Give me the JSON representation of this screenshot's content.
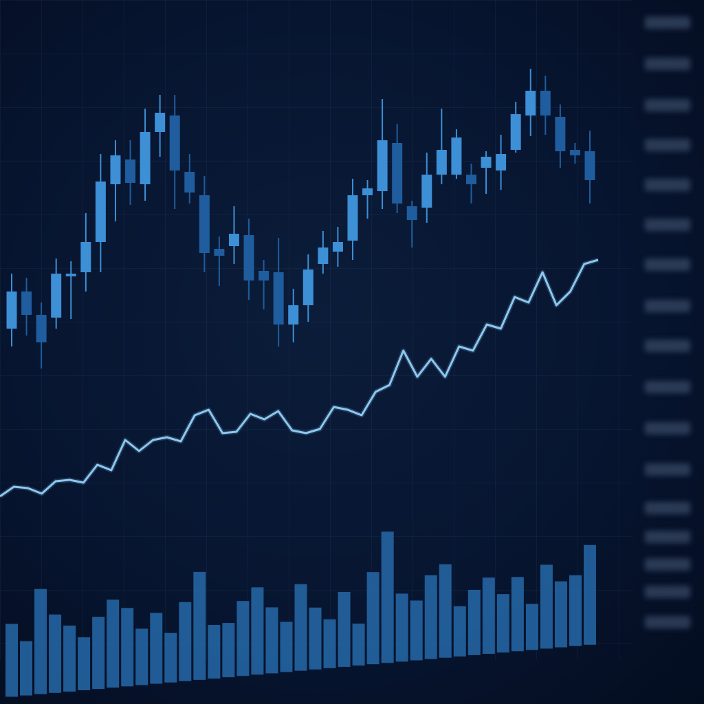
{
  "chart_data": [
    {
      "type": "candlestick",
      "categories": [
        null,
        null,
        null,
        null,
        null,
        null,
        null,
        null,
        null,
        null,
        null,
        null,
        null,
        null,
        null,
        null,
        null,
        null,
        null,
        null,
        null,
        null,
        null,
        null,
        null,
        null,
        null,
        null,
        null,
        null,
        null,
        null,
        null,
        null,
        null,
        null,
        null,
        null,
        null,
        null
      ],
      "open": [
        20.5,
        34,
        25.5,
        24.5,
        39.5,
        41,
        52,
        73,
        82,
        73,
        92,
        98,
        77.5,
        69,
        49.5,
        50.5,
        54.5,
        41.5,
        41,
        22,
        29,
        44,
        48.5,
        52.5,
        69,
        70.5,
        88,
        65,
        64.5,
        76.5,
        76.5,
        76.5,
        79,
        78,
        85.5,
        98,
        107,
        97.5,
        85.5,
        85
      ],
      "high": [
        40.5,
        39,
        30,
        46,
        45,
        62.5,
        84,
        89,
        89,
        100.5,
        105.5,
        105.5,
        84,
        76,
        54,
        65,
        60.5,
        45.5,
        53.5,
        35,
        47.5,
        56,
        57.5,
        75,
        74.5,
        104,
        95,
        67,
        84.5,
        100.5,
        93,
        80.5,
        85,
        91,
        103,
        115,
        112.5,
        102,
        88,
        92.5
      ],
      "low": [
        14,
        18,
        6,
        20.5,
        24,
        34,
        41,
        59.5,
        65.5,
        67,
        83,
        64,
        66,
        41,
        36,
        44,
        31,
        27.5,
        14,
        15.5,
        23,
        40.5,
        43,
        45.5,
        60.5,
        64,
        62.5,
        50,
        59,
        73,
        75,
        66,
        69.5,
        71,
        84.5,
        90.5,
        91,
        79,
        80.5,
        66
      ],
      "close": [
        34,
        25.5,
        15.5,
        40.5,
        40.5,
        52,
        74,
        83.5,
        73.5,
        92,
        99,
        78,
        70,
        48,
        47,
        55,
        38,
        38,
        22,
        29,
        42,
        50,
        52,
        69,
        71.5,
        89,
        66,
        60,
        76.5,
        85.5,
        90,
        73,
        83,
        84,
        98.5,
        107,
        98,
        85,
        83.5,
        74.5
      ],
      "up_color": "#3d8fd6",
      "down_color": "#1f5d9e",
      "ylim": [
        0,
        140
      ]
    },
    {
      "type": "line",
      "categories": [
        null,
        null,
        null,
        null,
        null,
        null,
        null,
        null,
        null,
        null,
        null,
        null,
        null,
        null,
        null,
        null,
        null,
        null,
        null,
        null,
        null,
        null,
        null,
        null,
        null,
        null,
        null,
        null,
        null,
        null,
        null,
        null,
        null,
        null,
        null,
        null,
        null,
        null,
        null,
        null,
        null,
        null,
        null,
        null
      ],
      "values": [
        19.5,
        23,
        22.5,
        20.5,
        25,
        25.5,
        24.5,
        31,
        29,
        40,
        36,
        40,
        41,
        39.5,
        49,
        51,
        42.5,
        43,
        49.5,
        47.5,
        50.5,
        43.5,
        42.5,
        44,
        52,
        51,
        49,
        57.5,
        60,
        72.5,
        63,
        69.5,
        63,
        74,
        72.5,
        82,
        80.5,
        92,
        90,
        101,
        89,
        94,
        104,
        105.5
      ],
      "color": "#8cc8f0",
      "ylim": [
        0,
        125
      ]
    },
    {
      "type": "bar",
      "categories": [
        null,
        null,
        null,
        null,
        null,
        null,
        null,
        null,
        null,
        null,
        null,
        null,
        null,
        null,
        null,
        null,
        null,
        null,
        null,
        null,
        null,
        null,
        null,
        null,
        null,
        null,
        null,
        null,
        null,
        null,
        null,
        null,
        null,
        null,
        null,
        null,
        null,
        null,
        null,
        null,
        null
      ],
      "values": [
        106,
        79,
        153,
        114,
        96,
        77,
        105,
        128,
        114,
        82,
        103,
        72,
        115,
        157,
        78,
        79,
        109,
        127,
        96,
        73,
        126,
        90,
        71,
        109,
        61,
        134,
        191,
        99,
        87,
        122,
        136,
        73,
        95,
        111,
        85,
        108,
        67,
        122,
        96,
        103,
        145
      ],
      "color": "#2668a8",
      "ylim": [
        0,
        300
      ]
    }
  ]
}
